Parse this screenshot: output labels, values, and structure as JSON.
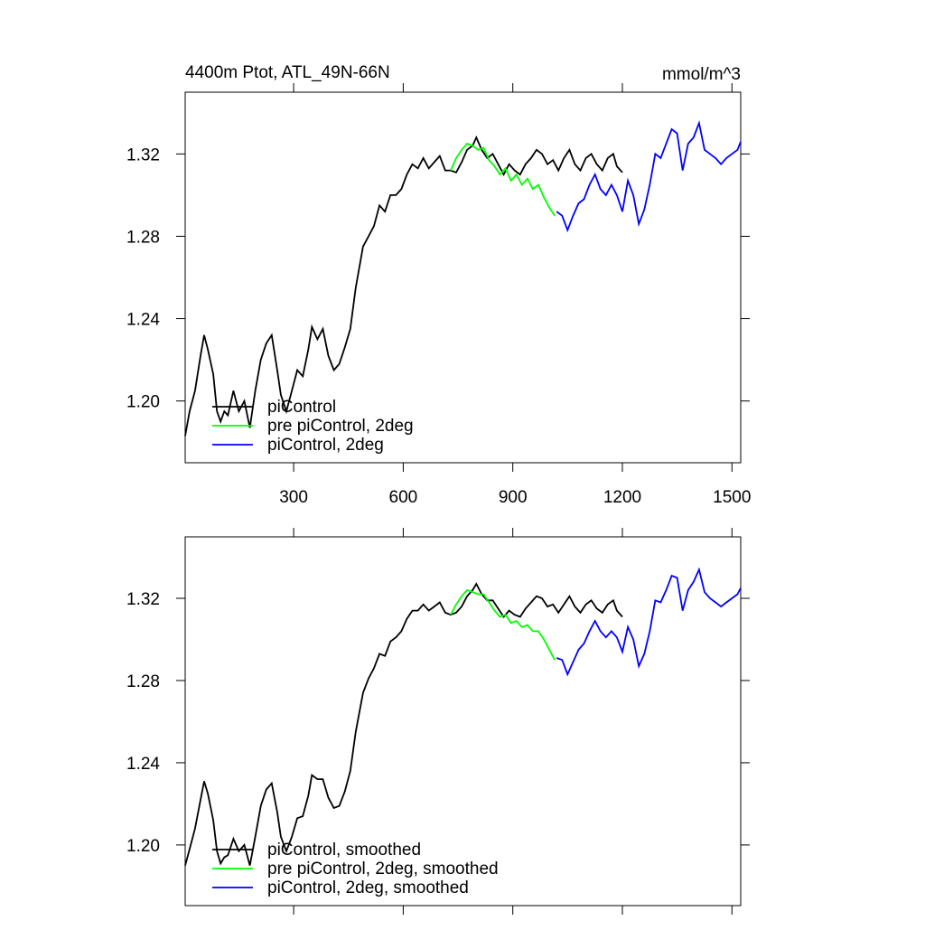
{
  "chart_data": [
    {
      "type": "line",
      "title": "4400m Ptot, ATL_49N-66N",
      "units": "mmol/m^3",
      "xlim": [
        3,
        1524
      ],
      "ylim": [
        1.17,
        1.35
      ],
      "xticks": [
        300,
        600,
        900,
        1200,
        1500
      ],
      "yticks": [
        {
          "value": 1.2,
          "label": "1.20"
        },
        1.24,
        1.28,
        1.32
      ],
      "series": [
        {
          "name": "piControl",
          "color": "#000000",
          "x": [
            3,
            15,
            30,
            45,
            55,
            65,
            80,
            90,
            100,
            110,
            120,
            135,
            150,
            165,
            180,
            195,
            210,
            225,
            240,
            255,
            265,
            280,
            295,
            310,
            325,
            340,
            350,
            365,
            380,
            395,
            410,
            425,
            440,
            455,
            470,
            490,
            505,
            520,
            535,
            550,
            565,
            580,
            595,
            610,
            625,
            640,
            655,
            670,
            685,
            700,
            715,
            730,
            745,
            760,
            775,
            790,
            800,
            815,
            830,
            845,
            860,
            875,
            890,
            905,
            920,
            935,
            950,
            965,
            980,
            995,
            1010,
            1025,
            1040,
            1055,
            1070,
            1085,
            1100,
            1115,
            1130,
            1145,
            1160,
            1175,
            1185,
            1200
          ],
          "values": [
            1.183,
            1.195,
            1.205,
            1.222,
            1.232,
            1.225,
            1.213,
            1.195,
            1.19,
            1.195,
            1.193,
            1.205,
            1.195,
            1.2,
            1.187,
            1.205,
            1.22,
            1.228,
            1.232,
            1.215,
            1.203,
            1.195,
            1.205,
            1.215,
            1.212,
            1.225,
            1.236,
            1.23,
            1.235,
            1.222,
            1.215,
            1.218,
            1.226,
            1.235,
            1.255,
            1.275,
            1.28,
            1.285,
            1.295,
            1.292,
            1.3,
            1.3,
            1.303,
            1.31,
            1.315,
            1.313,
            1.318,
            1.313,
            1.316,
            1.319,
            1.312,
            1.312,
            1.311,
            1.316,
            1.322,
            1.324,
            1.328,
            1.322,
            1.318,
            1.32,
            1.315,
            1.31,
            1.315,
            1.312,
            1.31,
            1.315,
            1.318,
            1.322,
            1.32,
            1.315,
            1.317,
            1.312,
            1.318,
            1.322,
            1.315,
            1.312,
            1.318,
            1.32,
            1.315,
            1.312,
            1.318,
            1.32,
            1.314,
            1.311
          ]
        },
        {
          "name": "pre piControl, 2deg",
          "color": "#00ff00",
          "x": [
            730,
            745,
            760,
            775,
            790,
            805,
            820,
            835,
            850,
            865,
            880,
            895,
            910,
            925,
            940,
            955,
            970,
            985,
            1000,
            1015
          ],
          "values": [
            1.312,
            1.318,
            1.322,
            1.325,
            1.324,
            1.322,
            1.323,
            1.317,
            1.314,
            1.31,
            1.313,
            1.307,
            1.31,
            1.305,
            1.308,
            1.303,
            1.305,
            1.299,
            1.294,
            1.29
          ]
        },
        {
          "name": "piControl, 2deg",
          "color": "#0000ff",
          "x": [
            1020,
            1035,
            1050,
            1065,
            1080,
            1095,
            1110,
            1125,
            1140,
            1155,
            1170,
            1185,
            1200,
            1215,
            1230,
            1245,
            1260,
            1275,
            1290,
            1305,
            1320,
            1335,
            1350,
            1365,
            1380,
            1395,
            1410,
            1425,
            1440,
            1455,
            1470,
            1485,
            1500,
            1515,
            1524
          ],
          "values": [
            1.292,
            1.29,
            1.283,
            1.29,
            1.296,
            1.298,
            1.305,
            1.31,
            1.303,
            1.3,
            1.305,
            1.3,
            1.292,
            1.307,
            1.3,
            1.286,
            1.293,
            1.305,
            1.32,
            1.318,
            1.325,
            1.332,
            1.33,
            1.312,
            1.325,
            1.328,
            1.335,
            1.322,
            1.32,
            1.318,
            1.315,
            1.318,
            1.32,
            1.322,
            1.326
          ]
        }
      ]
    },
    {
      "type": "line",
      "xlim": [
        3,
        1524
      ],
      "ylim": [
        1.1705,
        1.3499
      ],
      "yticks": [
        {
          "value": 1.2,
          "label": "1.20"
        },
        1.24,
        1.28,
        1.32
      ],
      "series": [
        {
          "name": "piControl, smoothed",
          "color": "#000000",
          "x": [
            3,
            15,
            30,
            45,
            55,
            65,
            80,
            90,
            100,
            110,
            120,
            135,
            150,
            165,
            180,
            195,
            210,
            225,
            240,
            255,
            265,
            280,
            295,
            310,
            325,
            340,
            350,
            365,
            380,
            395,
            410,
            425,
            440,
            455,
            470,
            490,
            505,
            520,
            535,
            550,
            565,
            580,
            595,
            610,
            625,
            640,
            655,
            670,
            685,
            700,
            715,
            730,
            745,
            760,
            775,
            790,
            800,
            815,
            830,
            845,
            860,
            875,
            890,
            905,
            920,
            935,
            950,
            965,
            980,
            995,
            1010,
            1025,
            1040,
            1055,
            1070,
            1085,
            1100,
            1115,
            1130,
            1145,
            1160,
            1175,
            1185,
            1200
          ],
          "values": [
            1.19,
            1.198,
            1.208,
            1.222,
            1.231,
            1.225,
            1.212,
            1.197,
            1.191,
            1.194,
            1.195,
            1.203,
            1.197,
            1.2,
            1.19,
            1.204,
            1.219,
            1.227,
            1.23,
            1.216,
            1.204,
            1.197,
            1.204,
            1.213,
            1.214,
            1.224,
            1.234,
            1.232,
            1.232,
            1.223,
            1.218,
            1.219,
            1.226,
            1.236,
            1.255,
            1.274,
            1.281,
            1.286,
            1.293,
            1.292,
            1.299,
            1.301,
            1.304,
            1.31,
            1.314,
            1.314,
            1.317,
            1.314,
            1.316,
            1.318,
            1.313,
            1.312,
            1.313,
            1.316,
            1.321,
            1.324,
            1.327,
            1.322,
            1.319,
            1.319,
            1.315,
            1.311,
            1.314,
            1.312,
            1.311,
            1.315,
            1.318,
            1.321,
            1.32,
            1.316,
            1.317,
            1.313,
            1.317,
            1.321,
            1.316,
            1.313,
            1.317,
            1.319,
            1.315,
            1.313,
            1.317,
            1.319,
            1.314,
            1.311
          ]
        },
        {
          "name": "pre piControl, 2deg, smoothed",
          "color": "#00ff00",
          "x": [
            730,
            745,
            760,
            775,
            790,
            805,
            820,
            835,
            850,
            865,
            880,
            895,
            910,
            925,
            940,
            955,
            970,
            985,
            1000,
            1015
          ],
          "values": [
            1.312,
            1.317,
            1.321,
            1.324,
            1.323,
            1.322,
            1.322,
            1.318,
            1.314,
            1.311,
            1.312,
            1.308,
            1.309,
            1.306,
            1.307,
            1.304,
            1.304,
            1.3,
            1.295,
            1.29
          ]
        },
        {
          "name": "piControl, 2deg, smoothed",
          "color": "#0000ff",
          "x": [
            1020,
            1035,
            1050,
            1065,
            1080,
            1095,
            1110,
            1125,
            1140,
            1155,
            1170,
            1185,
            1200,
            1215,
            1230,
            1245,
            1260,
            1275,
            1290,
            1305,
            1320,
            1335,
            1350,
            1365,
            1380,
            1395,
            1410,
            1425,
            1440,
            1455,
            1470,
            1485,
            1500,
            1515,
            1524
          ],
          "values": [
            1.291,
            1.29,
            1.283,
            1.289,
            1.295,
            1.298,
            1.304,
            1.309,
            1.304,
            1.301,
            1.304,
            1.301,
            1.294,
            1.306,
            1.3,
            1.287,
            1.293,
            1.304,
            1.319,
            1.318,
            1.324,
            1.331,
            1.33,
            1.314,
            1.324,
            1.328,
            1.334,
            1.323,
            1.32,
            1.318,
            1.316,
            1.318,
            1.32,
            1.322,
            1.325
          ]
        }
      ]
    }
  ]
}
